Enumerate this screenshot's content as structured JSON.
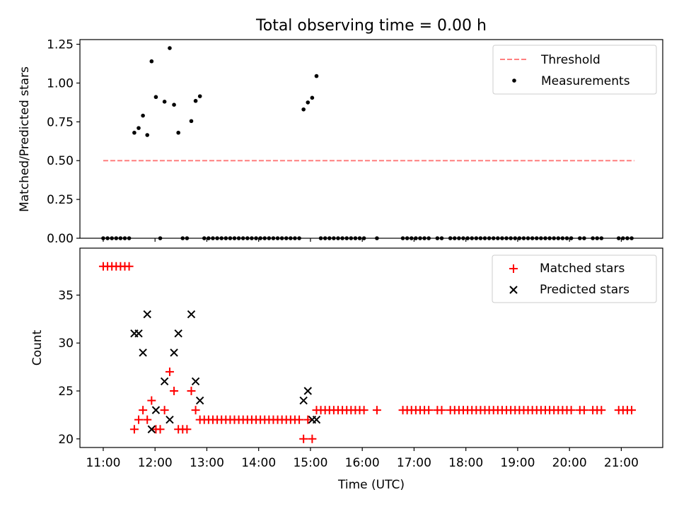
{
  "chart_data": [
    {
      "type": "scatter",
      "title": "Total observing time = 0.00 h",
      "xlabel": "",
      "ylabel": "Matched/Predicted stars",
      "xlim": [
        "10:33",
        "21:48"
      ],
      "ylim": [
        0,
        1.28
      ],
      "yticks": [
        0.0,
        0.25,
        0.5,
        0.75,
        1.0,
        1.25
      ],
      "ytick_labels": [
        "0.00",
        "0.25",
        "0.50",
        "0.75",
        "1.00",
        "1.25"
      ],
      "legend": {
        "placement": "upper right",
        "entries": [
          "Threshold",
          "Measurements"
        ]
      },
      "series": [
        {
          "name": "Threshold",
          "style": "dashed-line",
          "color": "#ff7f7f",
          "x": [
            "11:00",
            "21:15"
          ],
          "y": [
            0.5,
            0.5
          ]
        },
        {
          "name": "Measurements",
          "style": "dot",
          "color": "#000000",
          "points": [
            [
              "11:00",
              0
            ],
            [
              "11:05",
              0
            ],
            [
              "11:10",
              0
            ],
            [
              "11:15",
              0
            ],
            [
              "11:20",
              0
            ],
            [
              "11:25",
              0
            ],
            [
              "11:30",
              0
            ],
            [
              "11:36",
              0.68
            ],
            [
              "11:41",
              0.71
            ],
            [
              "11:46",
              0.79
            ],
            [
              "11:51",
              0.665
            ],
            [
              "11:56",
              1.14
            ],
            [
              "12:01",
              0.91
            ],
            [
              "12:06",
              0
            ],
            [
              "12:11",
              0.88
            ],
            [
              "12:17",
              1.225
            ],
            [
              "12:22",
              0.86
            ],
            [
              "12:27",
              0.68
            ],
            [
              "12:32",
              0
            ],
            [
              "12:37",
              0
            ],
            [
              "12:42",
              0.755
            ],
            [
              "12:47",
              0.885
            ],
            [
              "12:52",
              0.915
            ],
            [
              "12:57",
              0
            ],
            [
              "13:02",
              0
            ],
            [
              "13:07",
              0
            ],
            [
              "13:12",
              0
            ],
            [
              "13:17",
              0
            ],
            [
              "13:22",
              0
            ],
            [
              "13:27",
              0
            ],
            [
              "13:32",
              0
            ],
            [
              "13:37",
              0
            ],
            [
              "13:42",
              0
            ],
            [
              "13:47",
              0
            ],
            [
              "13:52",
              0
            ],
            [
              "13:57",
              0
            ],
            [
              "14:02",
              0
            ],
            [
              "14:07",
              0
            ],
            [
              "14:12",
              0
            ],
            [
              "14:17",
              0
            ],
            [
              "14:22",
              0
            ],
            [
              "14:27",
              0
            ],
            [
              "14:32",
              0
            ],
            [
              "14:37",
              0
            ],
            [
              "14:42",
              0
            ],
            [
              "14:47",
              0
            ],
            [
              "14:52",
              0.83
            ],
            [
              "14:57",
              0.875
            ],
            [
              "15:02",
              0.905
            ],
            [
              "15:07",
              1.045
            ],
            [
              "15:12",
              0
            ],
            [
              "15:17",
              0
            ],
            [
              "15:22",
              0
            ],
            [
              "15:27",
              0
            ],
            [
              "15:32",
              0
            ],
            [
              "15:37",
              0
            ],
            [
              "15:42",
              0
            ],
            [
              "15:47",
              0
            ],
            [
              "15:52",
              0
            ],
            [
              "15:57",
              0
            ],
            [
              "16:02",
              0
            ],
            [
              "16:17",
              0
            ],
            [
              "16:47",
              0
            ],
            [
              "16:52",
              0
            ],
            [
              "16:57",
              0
            ],
            [
              "17:02",
              0
            ],
            [
              "17:07",
              0
            ],
            [
              "17:12",
              0
            ],
            [
              "17:17",
              0
            ],
            [
              "17:27",
              0
            ],
            [
              "17:32",
              0
            ],
            [
              "17:42",
              0
            ],
            [
              "17:47",
              0
            ],
            [
              "17:52",
              0
            ],
            [
              "17:57",
              0
            ],
            [
              "18:02",
              0
            ],
            [
              "18:07",
              0
            ],
            [
              "18:12",
              0
            ],
            [
              "18:17",
              0
            ],
            [
              "18:22",
              0
            ],
            [
              "18:27",
              0
            ],
            [
              "18:32",
              0
            ],
            [
              "18:37",
              0
            ],
            [
              "18:42",
              0
            ],
            [
              "18:47",
              0
            ],
            [
              "18:52",
              0
            ],
            [
              "18:57",
              0
            ],
            [
              "19:02",
              0
            ],
            [
              "19:07",
              0
            ],
            [
              "19:12",
              0
            ],
            [
              "19:17",
              0
            ],
            [
              "19:22",
              0
            ],
            [
              "19:27",
              0
            ],
            [
              "19:32",
              0
            ],
            [
              "19:37",
              0
            ],
            [
              "19:42",
              0
            ],
            [
              "19:47",
              0
            ],
            [
              "19:52",
              0
            ],
            [
              "19:57",
              0
            ],
            [
              "20:02",
              0
            ],
            [
              "20:12",
              0
            ],
            [
              "20:17",
              0
            ],
            [
              "20:27",
              0
            ],
            [
              "20:32",
              0
            ],
            [
              "20:37",
              0
            ],
            [
              "20:57",
              0
            ],
            [
              "21:02",
              0
            ],
            [
              "21:07",
              0
            ],
            [
              "21:12",
              0
            ]
          ]
        }
      ]
    },
    {
      "type": "scatter",
      "title": "",
      "xlabel": "Time (UTC)",
      "ylabel": "Count",
      "xlim": [
        "10:33",
        "21:48"
      ],
      "ylim": [
        19.1,
        39.9
      ],
      "yticks": [
        20,
        25,
        30,
        35
      ],
      "ytick_labels": [
        "20",
        "25",
        "30",
        "35"
      ],
      "xticks": [
        "11:00",
        "12:00",
        "13:00",
        "14:00",
        "15:00",
        "16:00",
        "17:00",
        "18:00",
        "19:00",
        "20:00",
        "21:00"
      ],
      "xtick_labels": [
        "11:00",
        "12:00",
        "13:00",
        "14:00",
        "15:00",
        "16:00",
        "17:00",
        "18:00",
        "19:00",
        "20:00",
        "21:00"
      ],
      "legend": {
        "placement": "upper right",
        "entries": [
          "Matched stars",
          "Predicted stars"
        ]
      },
      "series": [
        {
          "name": "Matched stars",
          "style": "plus",
          "color": "#ff0000",
          "points": [
            [
              "11:00",
              38
            ],
            [
              "11:05",
              38
            ],
            [
              "11:10",
              38
            ],
            [
              "11:15",
              38
            ],
            [
              "11:20",
              38
            ],
            [
              "11:25",
              38
            ],
            [
              "11:30",
              38
            ],
            [
              "11:36",
              21
            ],
            [
              "11:41",
              22
            ],
            [
              "11:46",
              23
            ],
            [
              "11:51",
              22
            ],
            [
              "11:56",
              24
            ],
            [
              "12:01",
              21
            ],
            [
              "12:06",
              21
            ],
            [
              "12:11",
              23
            ],
            [
              "12:17",
              27
            ],
            [
              "12:22",
              25
            ],
            [
              "12:27",
              21
            ],
            [
              "12:32",
              21
            ],
            [
              "12:37",
              21
            ],
            [
              "12:42",
              25
            ],
            [
              "12:47",
              23
            ],
            [
              "12:52",
              22
            ],
            [
              "12:57",
              22
            ],
            [
              "13:02",
              22
            ],
            [
              "13:07",
              22
            ],
            [
              "13:12",
              22
            ],
            [
              "13:17",
              22
            ],
            [
              "13:22",
              22
            ],
            [
              "13:27",
              22
            ],
            [
              "13:32",
              22
            ],
            [
              "13:37",
              22
            ],
            [
              "13:42",
              22
            ],
            [
              "13:47",
              22
            ],
            [
              "13:52",
              22
            ],
            [
              "13:57",
              22
            ],
            [
              "14:02",
              22
            ],
            [
              "14:07",
              22
            ],
            [
              "14:12",
              22
            ],
            [
              "14:17",
              22
            ],
            [
              "14:22",
              22
            ],
            [
              "14:27",
              22
            ],
            [
              "14:32",
              22
            ],
            [
              "14:37",
              22
            ],
            [
              "14:42",
              22
            ],
            [
              "14:47",
              22
            ],
            [
              "14:52",
              20
            ],
            [
              "14:57",
              22
            ],
            [
              "15:02",
              20
            ],
            [
              "15:07",
              23
            ],
            [
              "15:12",
              23
            ],
            [
              "15:17",
              23
            ],
            [
              "15:22",
              23
            ],
            [
              "15:27",
              23
            ],
            [
              "15:32",
              23
            ],
            [
              "15:37",
              23
            ],
            [
              "15:42",
              23
            ],
            [
              "15:47",
              23
            ],
            [
              "15:52",
              23
            ],
            [
              "15:57",
              23
            ],
            [
              "16:02",
              23
            ],
            [
              "16:17",
              23
            ],
            [
              "16:47",
              23
            ],
            [
              "16:52",
              23
            ],
            [
              "16:57",
              23
            ],
            [
              "17:02",
              23
            ],
            [
              "17:07",
              23
            ],
            [
              "17:12",
              23
            ],
            [
              "17:17",
              23
            ],
            [
              "17:27",
              23
            ],
            [
              "17:32",
              23
            ],
            [
              "17:42",
              23
            ],
            [
              "17:47",
              23
            ],
            [
              "17:52",
              23
            ],
            [
              "17:57",
              23
            ],
            [
              "18:02",
              23
            ],
            [
              "18:07",
              23
            ],
            [
              "18:12",
              23
            ],
            [
              "18:17",
              23
            ],
            [
              "18:22",
              23
            ],
            [
              "18:27",
              23
            ],
            [
              "18:32",
              23
            ],
            [
              "18:37",
              23
            ],
            [
              "18:42",
              23
            ],
            [
              "18:47",
              23
            ],
            [
              "18:52",
              23
            ],
            [
              "18:57",
              23
            ],
            [
              "19:02",
              23
            ],
            [
              "19:07",
              23
            ],
            [
              "19:12",
              23
            ],
            [
              "19:17",
              23
            ],
            [
              "19:22",
              23
            ],
            [
              "19:27",
              23
            ],
            [
              "19:32",
              23
            ],
            [
              "19:37",
              23
            ],
            [
              "19:42",
              23
            ],
            [
              "19:47",
              23
            ],
            [
              "19:52",
              23
            ],
            [
              "19:57",
              23
            ],
            [
              "20:02",
              23
            ],
            [
              "20:12",
              23
            ],
            [
              "20:17",
              23
            ],
            [
              "20:27",
              23
            ],
            [
              "20:32",
              23
            ],
            [
              "20:37",
              23
            ],
            [
              "20:57",
              23
            ],
            [
              "21:02",
              23
            ],
            [
              "21:07",
              23
            ],
            [
              "21:12",
              23
            ]
          ]
        },
        {
          "name": "Predicted stars",
          "style": "x",
          "color": "#000000",
          "points": [
            [
              "11:36",
              31
            ],
            [
              "11:41",
              31
            ],
            [
              "11:46",
              29
            ],
            [
              "11:51",
              33
            ],
            [
              "11:56",
              21
            ],
            [
              "12:01",
              23
            ],
            [
              "12:11",
              26
            ],
            [
              "12:17",
              22
            ],
            [
              "12:22",
              29
            ],
            [
              "12:27",
              31
            ],
            [
              "12:42",
              33
            ],
            [
              "12:47",
              26
            ],
            [
              "12:52",
              24
            ],
            [
              "14:52",
              24
            ],
            [
              "14:57",
              25
            ],
            [
              "15:02",
              22
            ],
            [
              "15:07",
              22
            ]
          ]
        }
      ]
    }
  ]
}
